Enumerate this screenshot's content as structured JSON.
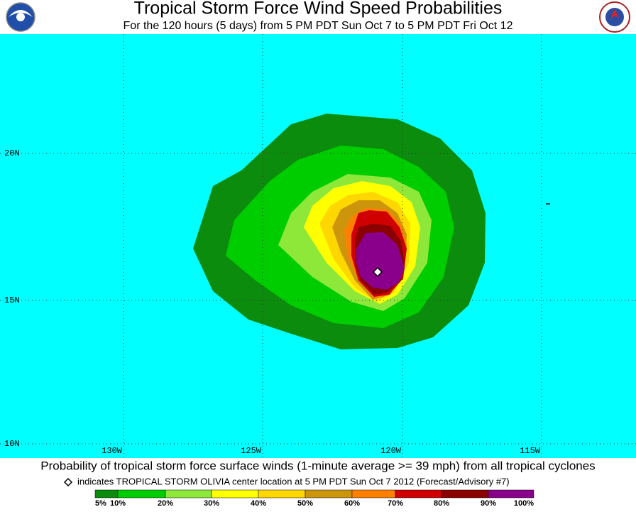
{
  "header": {
    "title": "Tropical Storm Force Wind Speed Probabilities",
    "subtitle": "For the 120 hours (5 days) from 5 PM PDT Sun Oct 7 to 5 PM PDT Fri Oct 12"
  },
  "map": {
    "background": "#00ffff",
    "lat_labels": [
      "20N",
      "15N",
      "10N"
    ],
    "lon_labels": [
      "130W",
      "125W",
      "120W",
      "115W"
    ]
  },
  "footer": {
    "caption": "Probability of tropical storm force surface winds (1-minute average >= 39 mph) from all tropical cyclones",
    "note": "indicates TROPICAL STORM OLIVIA center location at 5 PM PDT Sun Oct 7 2012 (Forecast/Advisory #7)"
  },
  "legend": {
    "labels": [
      "5%",
      "10%",
      "20%",
      "30%",
      "40%",
      "50%",
      "60%",
      "70%",
      "80%",
      "90%",
      "100%"
    ],
    "colors": [
      "#0c8c0c",
      "#00cd00",
      "#8ee83a",
      "#ffff00",
      "#ffd700",
      "#cd950c",
      "#ff8000",
      "#d00000",
      "#8b0000",
      "#8b008b"
    ]
  }
}
